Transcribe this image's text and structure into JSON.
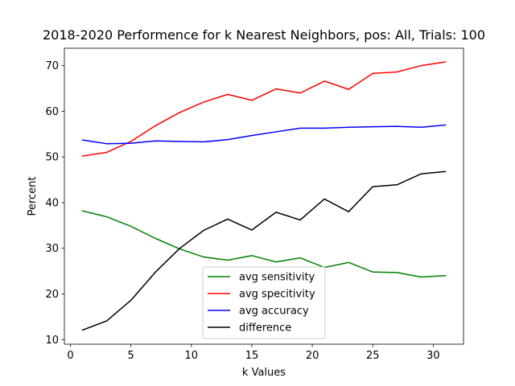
{
  "chart_data": {
    "type": "line",
    "title": "2018-2020 Performence for k Nearest Neighbors, pos: All, Trials: 100",
    "xlabel": "k Values",
    "ylabel": "Percent",
    "xlim": [
      -0.5,
      32.5
    ],
    "ylim": [
      9.0,
      73.8
    ],
    "xticks": [
      0,
      5,
      10,
      15,
      20,
      25,
      30
    ],
    "yticks": [
      10,
      20,
      30,
      40,
      50,
      60,
      70
    ],
    "grid": false,
    "legend_position": "lower center",
    "x": [
      1,
      3,
      5,
      7,
      9,
      11,
      13,
      15,
      17,
      19,
      21,
      23,
      25,
      27,
      29,
      31
    ],
    "series": [
      {
        "name": "avg sensitivity",
        "color": "#008000",
        "values": [
          38.2,
          36.9,
          34.8,
          32.2,
          29.9,
          28.1,
          27.4,
          28.4,
          27.0,
          27.9,
          25.8,
          26.9,
          24.8,
          24.7,
          23.7,
          24.0
        ]
      },
      {
        "name": "avg specitivity",
        "color": "#ff0000",
        "values": [
          50.2,
          51.0,
          53.4,
          56.8,
          59.7,
          62.0,
          63.7,
          62.4,
          64.9,
          64.0,
          66.6,
          64.8,
          68.3,
          68.6,
          70.0,
          70.8
        ]
      },
      {
        "name": "avg accuracy",
        "color": "#0000ff",
        "values": [
          53.7,
          52.9,
          53.0,
          53.5,
          53.4,
          53.3,
          53.8,
          54.7,
          55.5,
          56.3,
          56.3,
          56.5,
          56.6,
          56.7,
          56.5,
          57.0
        ]
      },
      {
        "name": "difference",
        "color": "#000000",
        "values": [
          12.1,
          14.1,
          18.6,
          24.7,
          29.9,
          33.9,
          36.4,
          34.0,
          37.9,
          36.2,
          40.8,
          38.0,
          43.5,
          43.9,
          46.3,
          46.8
        ]
      }
    ]
  }
}
